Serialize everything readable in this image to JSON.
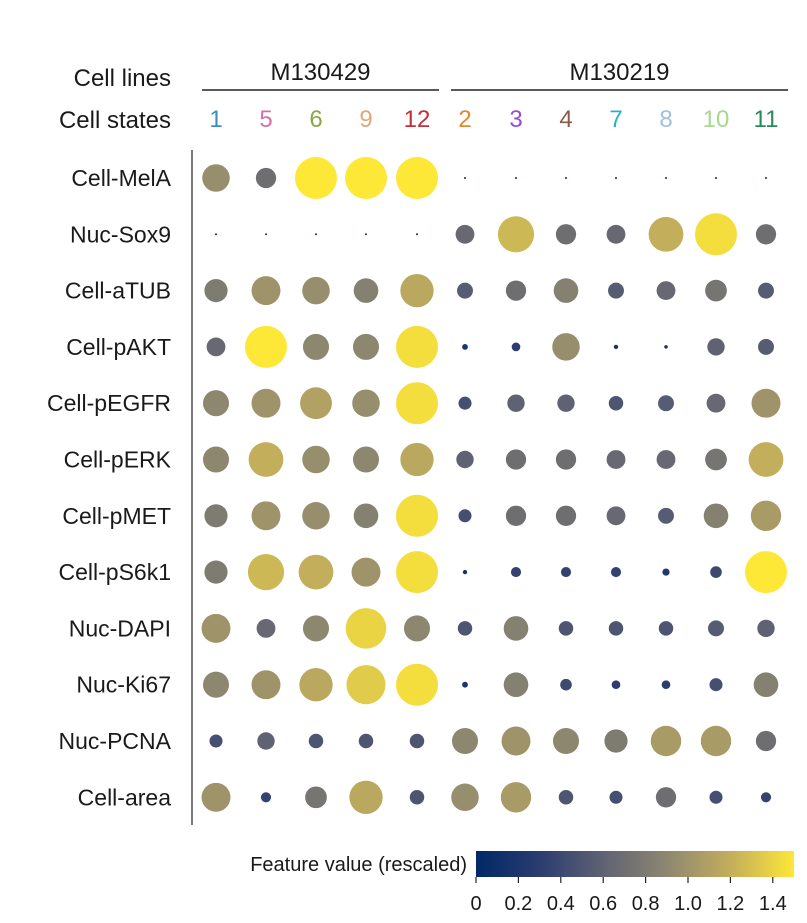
{
  "chart_data": {
    "type": "dot",
    "row_header": "Cell lines",
    "state_header": "Cell states",
    "cell_lines": [
      {
        "name": "M130429",
        "states": [
          "1",
          "5",
          "6",
          "9",
          "12"
        ]
      },
      {
        "name": "M130219",
        "states": [
          "2",
          "3",
          "4",
          "7",
          "8",
          "10",
          "11"
        ]
      }
    ],
    "state_colors": {
      "1": "#3a8fbf",
      "5": "#d46fae",
      "6": "#8aa84a",
      "9": "#e0a878",
      "12": "#c0303a",
      "2": "#e08a2a",
      "3": "#9a4ad8",
      "4": "#8a5a4a",
      "7": "#2ab0c8",
      "8": "#a0c0e0",
      "10": "#a8d890",
      "11": "#2a8a5a"
    },
    "columns": [
      "1",
      "5",
      "6",
      "9",
      "12",
      "2",
      "3",
      "4",
      "7",
      "8",
      "10",
      "11"
    ],
    "features": [
      "Cell-MelA",
      "Nuc-Sox9",
      "Cell-aTUB",
      "Cell-pAKT",
      "Cell-pEGFR",
      "Cell-pERK",
      "Cell-pMET",
      "Cell-pS6k1",
      "Nuc-DAPI",
      "Nuc-Ki67",
      "Nuc-PCNA",
      "Cell-area"
    ],
    "values": [
      [
        0.95,
        0.7,
        1.5,
        1.5,
        1.5,
        0.03,
        0.03,
        0.03,
        0.03,
        0.03,
        0.03,
        0.06
      ],
      [
        0.03,
        0.03,
        0.03,
        0.03,
        0.03,
        0.65,
        1.25,
        0.7,
        0.65,
        1.2,
        1.45,
        0.7
      ],
      [
        0.8,
        1.0,
        0.95,
        0.85,
        1.15,
        0.55,
        0.7,
        0.85,
        0.55,
        0.65,
        0.75,
        0.55
      ],
      [
        0.65,
        1.5,
        0.9,
        0.9,
        1.45,
        0.2,
        0.3,
        0.95,
        0.15,
        0.12,
        0.6,
        0.55
      ],
      [
        0.9,
        1.0,
        1.1,
        0.95,
        1.45,
        0.45,
        0.6,
        0.6,
        0.5,
        0.55,
        0.65,
        1.0
      ],
      [
        0.9,
        1.2,
        0.95,
        0.9,
        1.15,
        0.6,
        0.7,
        0.7,
        0.65,
        0.65,
        0.75,
        1.2
      ],
      [
        0.8,
        1.0,
        0.95,
        0.85,
        1.45,
        0.45,
        0.7,
        0.7,
        0.65,
        0.55,
        0.85,
        1.05
      ],
      [
        0.8,
        1.25,
        1.2,
        1.0,
        1.45,
        0.15,
        0.35,
        0.35,
        0.35,
        0.25,
        0.4,
        1.5
      ],
      [
        1.0,
        0.65,
        0.9,
        1.4,
        0.9,
        0.5,
        0.85,
        0.5,
        0.5,
        0.5,
        0.55,
        0.6
      ],
      [
        0.9,
        1.0,
        1.15,
        1.35,
        1.45,
        0.2,
        0.85,
        0.4,
        0.3,
        0.3,
        0.45,
        0.85
      ],
      [
        0.45,
        0.6,
        0.5,
        0.5,
        0.5,
        0.9,
        1.0,
        0.9,
        0.8,
        1.05,
        1.05,
        0.7
      ],
      [
        1.0,
        0.35,
        0.75,
        1.15,
        0.5,
        0.95,
        1.05,
        0.5,
        0.45,
        0.7,
        0.45,
        0.35
      ]
    ],
    "colorbar": {
      "label": "Feature value (rescaled)",
      "min": 0,
      "max": 1.5,
      "ticks": [
        "0",
        "0.2",
        "0.4",
        "0.6",
        "0.8",
        "1.0",
        "1.2",
        "1.4"
      ],
      "tick_values": [
        0,
        0.2,
        0.4,
        0.6,
        0.8,
        1.0,
        1.2,
        1.4
      ],
      "colors": [
        "#002966",
        "#2a3c70",
        "#5f6272",
        "#8d8770",
        "#c3ae5c",
        "#fde737"
      ]
    }
  }
}
